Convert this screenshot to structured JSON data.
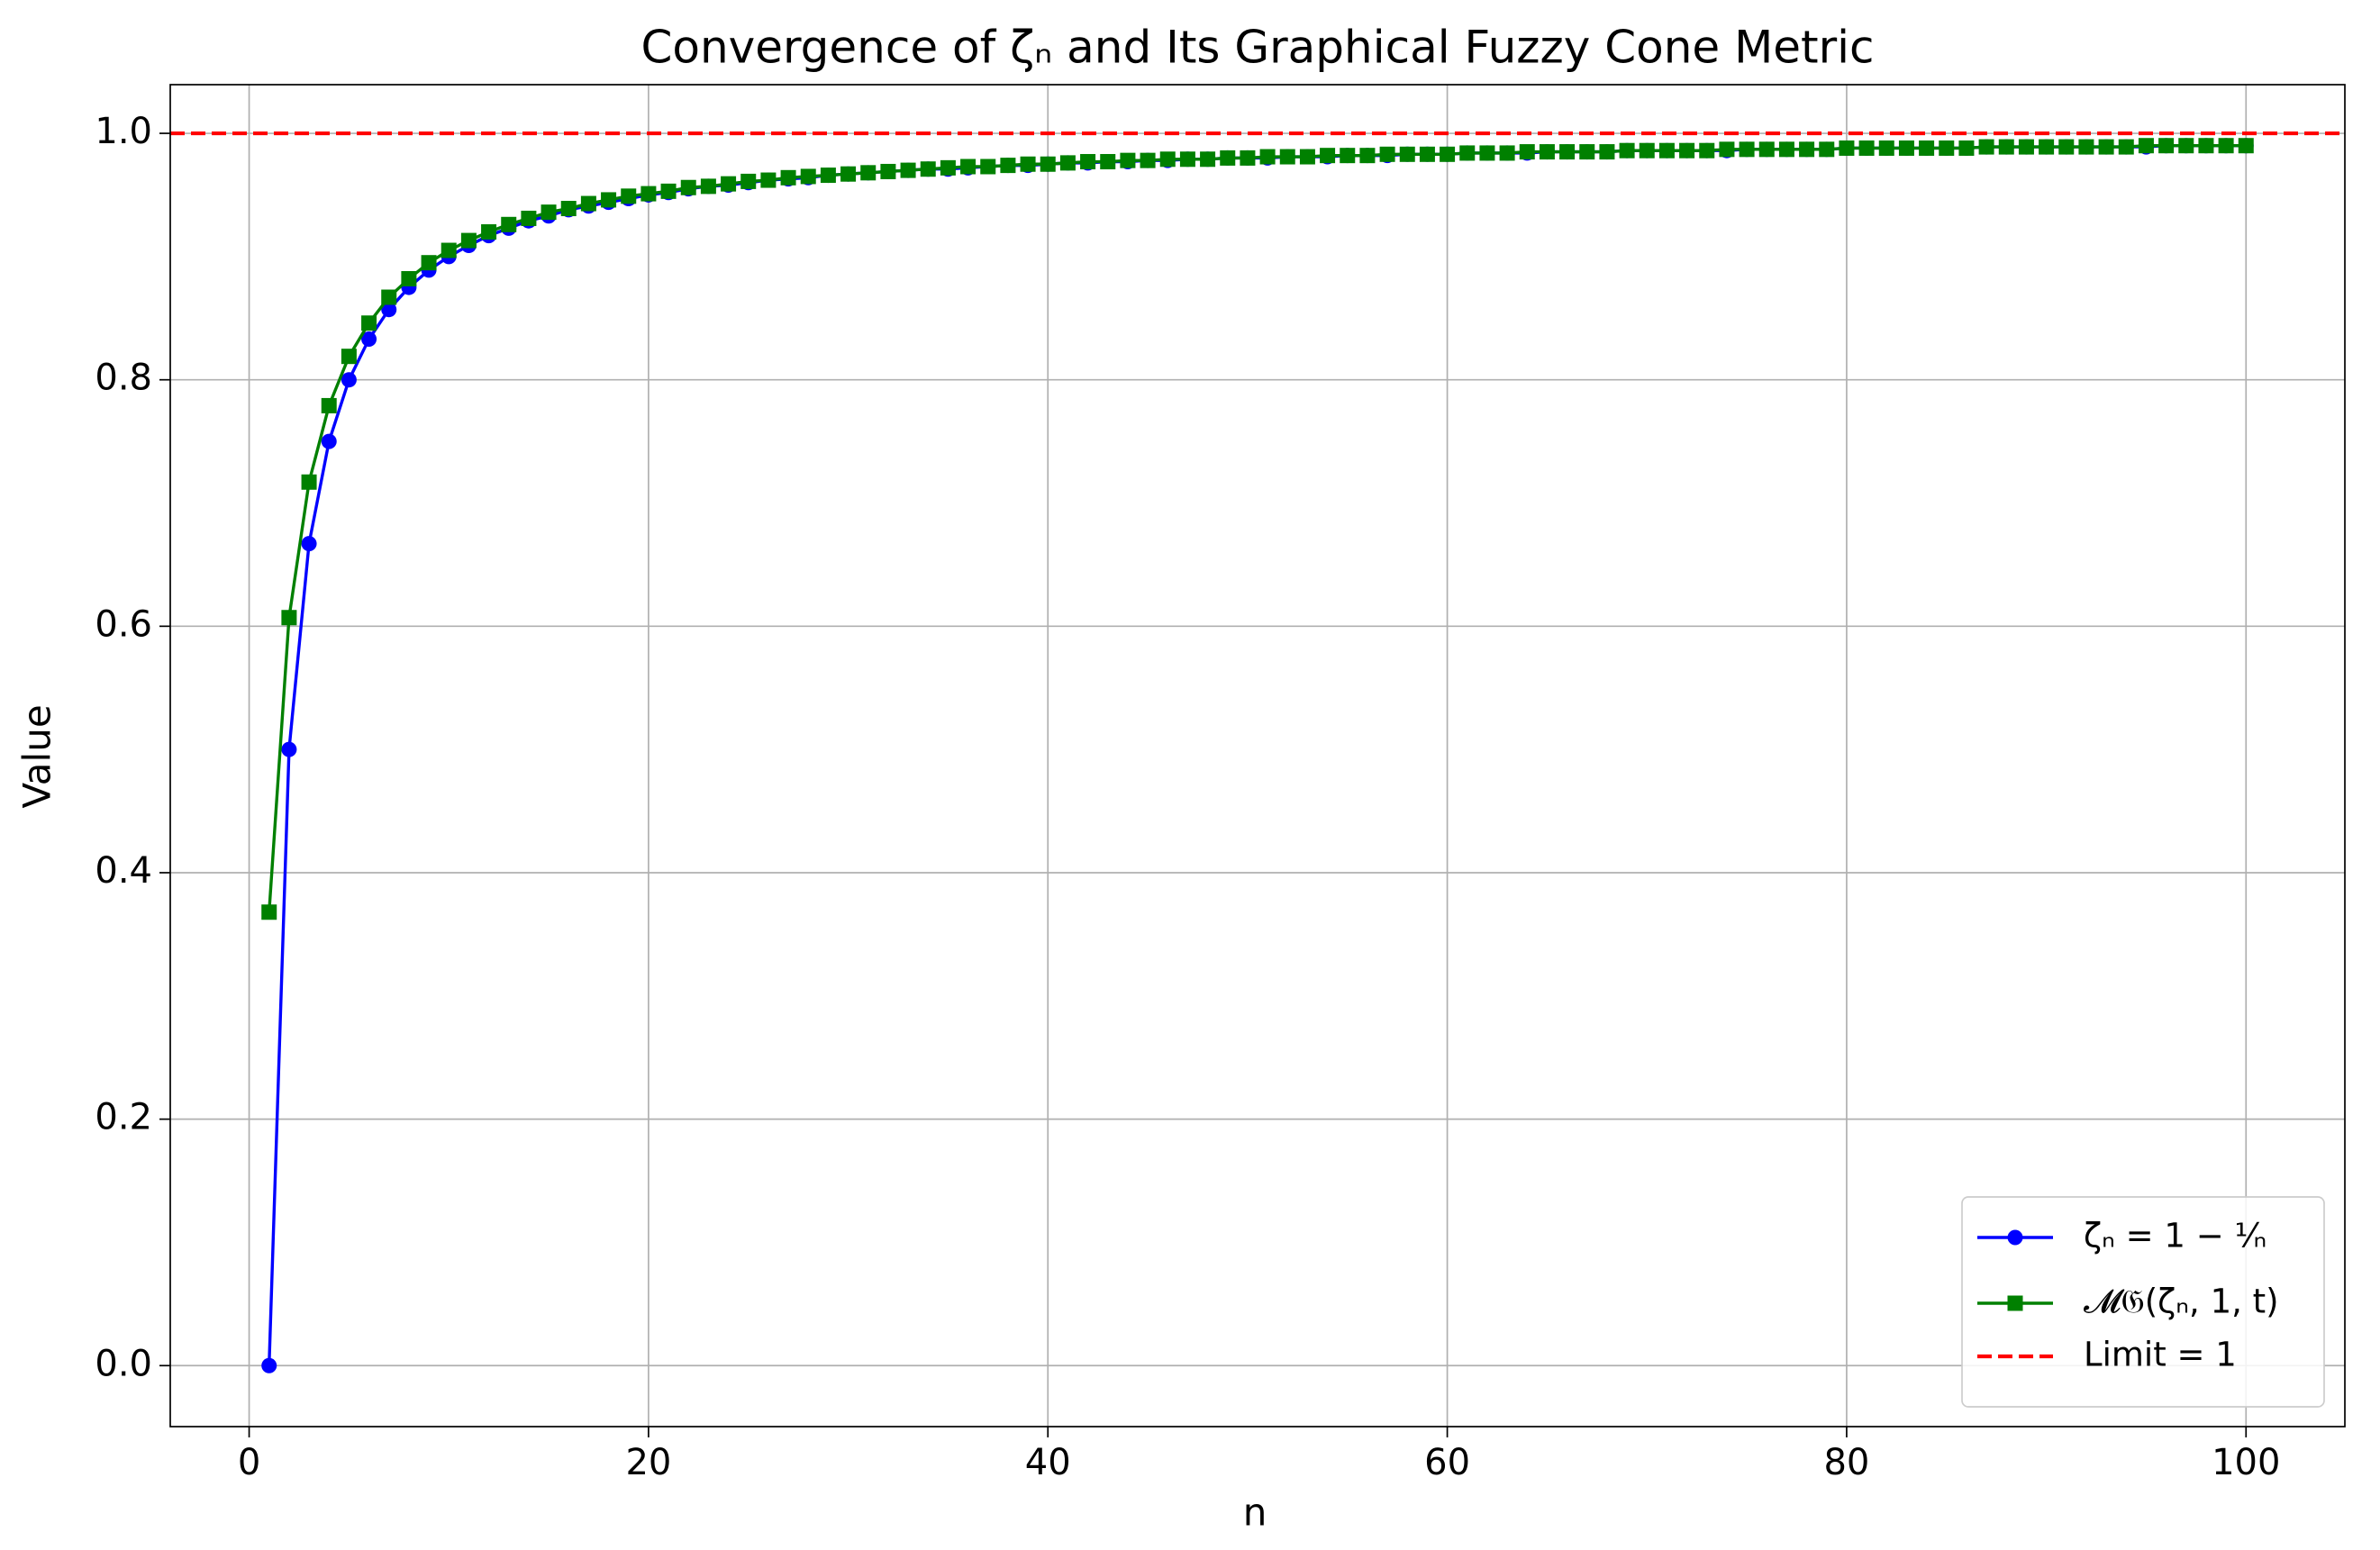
{
  "chart_data": {
    "type": "line",
    "title": "Convergence of ζₙ and Its Graphical Fuzzy Cone Metric",
    "xlabel": "n",
    "ylabel": "Value",
    "x": [
      1,
      2,
      3,
      4,
      5,
      6,
      7,
      8,
      9,
      10,
      11,
      12,
      13,
      14,
      15,
      16,
      17,
      18,
      19,
      20,
      21,
      22,
      23,
      24,
      25,
      26,
      27,
      28,
      29,
      30,
      31,
      32,
      33,
      34,
      35,
      36,
      37,
      38,
      39,
      40,
      41,
      42,
      43,
      44,
      45,
      46,
      47,
      48,
      49,
      50,
      51,
      52,
      53,
      54,
      55,
      56,
      57,
      58,
      59,
      60,
      61,
      62,
      63,
      64,
      65,
      66,
      67,
      68,
      69,
      70,
      71,
      72,
      73,
      74,
      75,
      76,
      77,
      78,
      79,
      80,
      81,
      82,
      83,
      84,
      85,
      86,
      87,
      88,
      89,
      90,
      91,
      92,
      93,
      94,
      95,
      96,
      97,
      98,
      99,
      100
    ],
    "series": [
      {
        "name": "ζₙ = 1 − ¹⁄ₙ",
        "color": "#0000ff",
        "marker": "circle",
        "values": [
          0,
          0.5,
          0.667,
          0.75,
          0.8,
          0.833,
          0.857,
          0.875,
          0.889,
          0.9,
          0.909,
          0.917,
          0.923,
          0.929,
          0.933,
          0.938,
          0.941,
          0.944,
          0.947,
          0.95,
          0.952,
          0.955,
          0.957,
          0.958,
          0.96,
          0.962,
          0.963,
          0.964,
          0.966,
          0.967,
          0.968,
          0.969,
          0.97,
          0.971,
          0.971,
          0.972,
          0.973,
          0.974,
          0.974,
          0.975,
          0.976,
          0.976,
          0.977,
          0.977,
          0.978,
          0.978,
          0.979,
          0.979,
          0.98,
          0.98,
          0.98,
          0.981,
          0.981,
          0.981,
          0.982,
          0.982,
          0.982,
          0.983,
          0.983,
          0.983,
          0.984,
          0.984,
          0.984,
          0.984,
          0.985,
          0.985,
          0.985,
          0.985,
          0.986,
          0.986,
          0.986,
          0.986,
          0.986,
          0.986,
          0.987,
          0.987,
          0.987,
          0.987,
          0.987,
          0.988,
          0.988,
          0.988,
          0.988,
          0.988,
          0.988,
          0.988,
          0.989,
          0.989,
          0.989,
          0.989,
          0.989,
          0.989,
          0.989,
          0.989,
          0.989,
          0.99,
          0.99,
          0.99,
          0.99,
          0.99
        ]
      },
      {
        "name": "𝓜𝔊(ζₙ, 1, t)",
        "color": "#008000",
        "marker": "square",
        "values": [
          0.368,
          0.607,
          0.717,
          0.779,
          0.819,
          0.846,
          0.867,
          0.882,
          0.895,
          0.905,
          0.913,
          0.92,
          0.926,
          0.931,
          0.936,
          0.939,
          0.943,
          0.946,
          0.949,
          0.951,
          0.953,
          0.956,
          0.957,
          0.959,
          0.961,
          0.962,
          0.964,
          0.965,
          0.966,
          0.967,
          0.968,
          0.969,
          0.97,
          0.971,
          0.972,
          0.973,
          0.973,
          0.974,
          0.975,
          0.975,
          0.976,
          0.977,
          0.977,
          0.978,
          0.978,
          0.979,
          0.979,
          0.979,
          0.98,
          0.98,
          0.981,
          0.981,
          0.981,
          0.982,
          0.982,
          0.982,
          0.983,
          0.983,
          0.983,
          0.983,
          0.984,
          0.984,
          0.984,
          0.985,
          0.985,
          0.985,
          0.985,
          0.985,
          0.986,
          0.986,
          0.986,
          0.986,
          0.986,
          0.987,
          0.987,
          0.987,
          0.987,
          0.987,
          0.987,
          0.988,
          0.988,
          0.988,
          0.988,
          0.988,
          0.988,
          0.988,
          0.989,
          0.989,
          0.989,
          0.989,
          0.989,
          0.989,
          0.989,
          0.989,
          0.99,
          0.99,
          0.99,
          0.99,
          0.99,
          0.99
        ]
      }
    ],
    "reference_line": {
      "name": "Limit = 1",
      "value": 1,
      "color": "#ff0000"
    },
    "xlim": [
      -3.95,
      104.95
    ],
    "ylim": [
      -0.0495,
      1.0395
    ],
    "xticks": [
      0,
      20,
      40,
      60,
      80,
      100
    ],
    "yticks": [
      {
        "value": 0,
        "label": "0.0"
      },
      0.2,
      0.4,
      0.6,
      0.8,
      {
        "value": 1,
        "label": "1.0"
      }
    ],
    "grid": true,
    "legend": "lower right"
  }
}
